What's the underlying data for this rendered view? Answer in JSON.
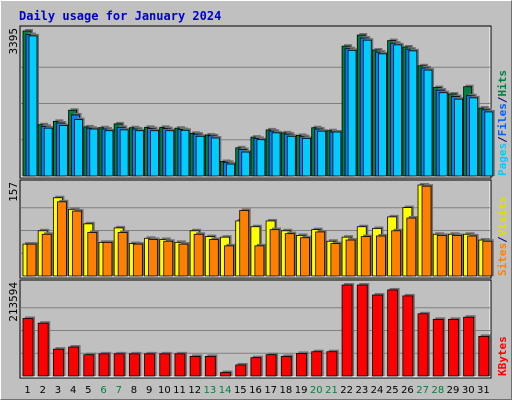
{
  "chart_data": {
    "title": "Daily usage for January 2024",
    "type": "bar",
    "days": [
      "1",
      "2",
      "3",
      "4",
      "5",
      "6",
      "7",
      "8",
      "9",
      "10",
      "11",
      "12",
      "13",
      "14",
      "15",
      "16",
      "17",
      "18",
      "19",
      "20",
      "21",
      "22",
      "23",
      "24",
      "25",
      "26",
      "27",
      "28",
      "29",
      "30",
      "31"
    ],
    "weekend_days": [
      "6",
      "7",
      "13",
      "14",
      "20",
      "21",
      "27",
      "28"
    ],
    "panels": [
      {
        "max_label": "3395",
        "ylim": [
          0,
          3395
        ],
        "legend": [
          "Pages",
          "/",
          "Files",
          "/",
          "Hits"
        ],
        "series": [
          {
            "name": "Hits",
            "color": "#008040",
            "values": [
              3395,
              1200,
              1280,
              1540,
              1150,
              1130,
              1220,
              1130,
              1140,
              1140,
              1120,
              1000,
              960,
              340,
              660,
              910,
              1080,
              1010,
              950,
              1130,
              1060,
              3040,
              3300,
              2950,
              3170,
              3020,
              2580,
              2070,
              1920,
              2090,
              1590
            ]
          },
          {
            "name": "Files",
            "color": "#0080ff",
            "values": [
              3310,
              1160,
              1240,
              1430,
              1120,
              1100,
              1140,
              1100,
              1110,
              1110,
              1090,
              980,
              940,
              320,
              620,
              880,
              1050,
              980,
              920,
              1100,
              1030,
              2980,
              3230,
              2900,
              3110,
              2970,
              2530,
              2010,
              1860,
              1880,
              1550
            ]
          },
          {
            "name": "Pages",
            "color": "#00ccff",
            "values": [
              3280,
              1120,
              1180,
              1320,
              1100,
              1060,
              1080,
              1060,
              1060,
              1060,
              1070,
              930,
              890,
              280,
              560,
              850,
              1010,
              930,
              880,
              1050,
              1030,
              2940,
              3180,
              2860,
              3070,
              2930,
              2480,
              1950,
              1800,
              1830,
              1500
            ]
          }
        ]
      },
      {
        "max_label": "157",
        "ylim": [
          0,
          157
        ],
        "legend": [
          "Sites",
          "/",
          "Visits"
        ],
        "series": [
          {
            "name": "Visits",
            "color": "#ffff00",
            "values": [
              55,
              78,
              135,
              115,
              90,
              58,
              83,
              56,
              65,
              63,
              58,
              78,
              68,
              67,
              95,
              85,
              95,
              78,
              70,
              80,
              60,
              67,
              85,
              82,
              102,
              118,
              157,
              72,
              72,
              72,
              62
            ]
          },
          {
            "name": "Sites",
            "color": "#ff8000",
            "values": [
              55,
              72,
              128,
              112,
              75,
              58,
              75,
              55,
              63,
              60,
              55,
              72,
              63,
              52,
              113,
              52,
              80,
              73,
              66,
              76,
              56,
              62,
              68,
              69,
              78,
              100,
              155,
              70,
              70,
              69,
              60
            ]
          }
        ]
      },
      {
        "max_label": "213594",
        "ylim": [
          0,
          213594
        ],
        "legend": [
          "KBytes"
        ],
        "series": [
          {
            "name": "KBytes",
            "color": "#ff0000",
            "values": [
              135000,
              124000,
              63000,
              68000,
              50000,
              52000,
              52000,
              52000,
              52000,
              52000,
              52000,
              46000,
              46000,
              8000,
              26000,
              43000,
              50000,
              46000,
              53000,
              57000,
              57000,
              213594,
              213594,
              190000,
              202000,
              188000,
              146000,
              133000,
              133000,
              138000,
              93000
            ]
          }
        ]
      }
    ]
  }
}
